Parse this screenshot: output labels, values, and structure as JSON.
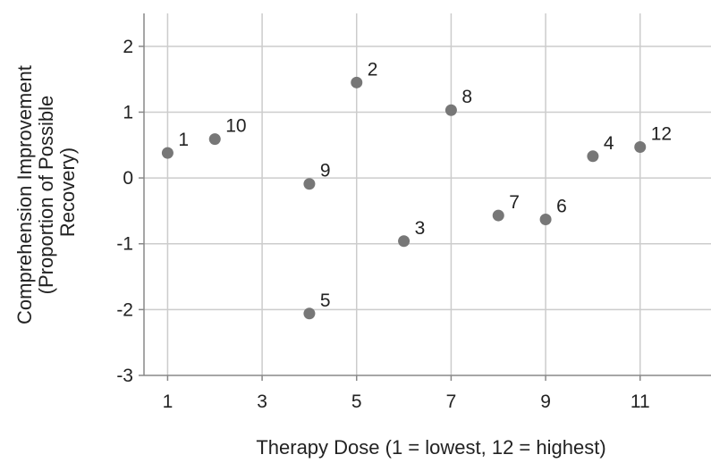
{
  "chart_data": {
    "type": "scatter",
    "title": "",
    "xlabel": "Therapy Dose (1 = lowest, 12 = highest)",
    "ylabel_lines": [
      "Comprehension Improvement",
      "(Proportion of Possible",
      "Recovery)"
    ],
    "xlim": [
      0.5,
      12.5
    ],
    "ylim": [
      -3,
      2.5
    ],
    "x_ticks": [
      1,
      3,
      5,
      7,
      9,
      11
    ],
    "y_ticks": [
      2,
      1,
      0,
      -1,
      -2,
      -3
    ],
    "x_tick_labels": [
      "1",
      "3",
      "5",
      "7",
      "9",
      "11"
    ],
    "y_tick_labels": [
      "2",
      "1",
      "0",
      "-1",
      "-2",
      "-3"
    ],
    "grid": true,
    "legend": "none",
    "point_color": "#777777",
    "grid_color": "#cccccc",
    "axis_color": "#888888",
    "points": [
      {
        "label": "1",
        "x": 1,
        "y": 0.38
      },
      {
        "label": "10",
        "x": 2,
        "y": 0.59
      },
      {
        "label": "9",
        "x": 4,
        "y": -0.09
      },
      {
        "label": "5",
        "x": 4,
        "y": -2.06
      },
      {
        "label": "2",
        "x": 5,
        "y": 1.45
      },
      {
        "label": "3",
        "x": 6,
        "y": -0.96
      },
      {
        "label": "8",
        "x": 7,
        "y": 1.03
      },
      {
        "label": "7",
        "x": 8,
        "y": -0.57
      },
      {
        "label": "6",
        "x": 9,
        "y": -0.63
      },
      {
        "label": "4",
        "x": 10,
        "y": 0.33
      },
      {
        "label": "12",
        "x": 11,
        "y": 0.47
      }
    ]
  }
}
